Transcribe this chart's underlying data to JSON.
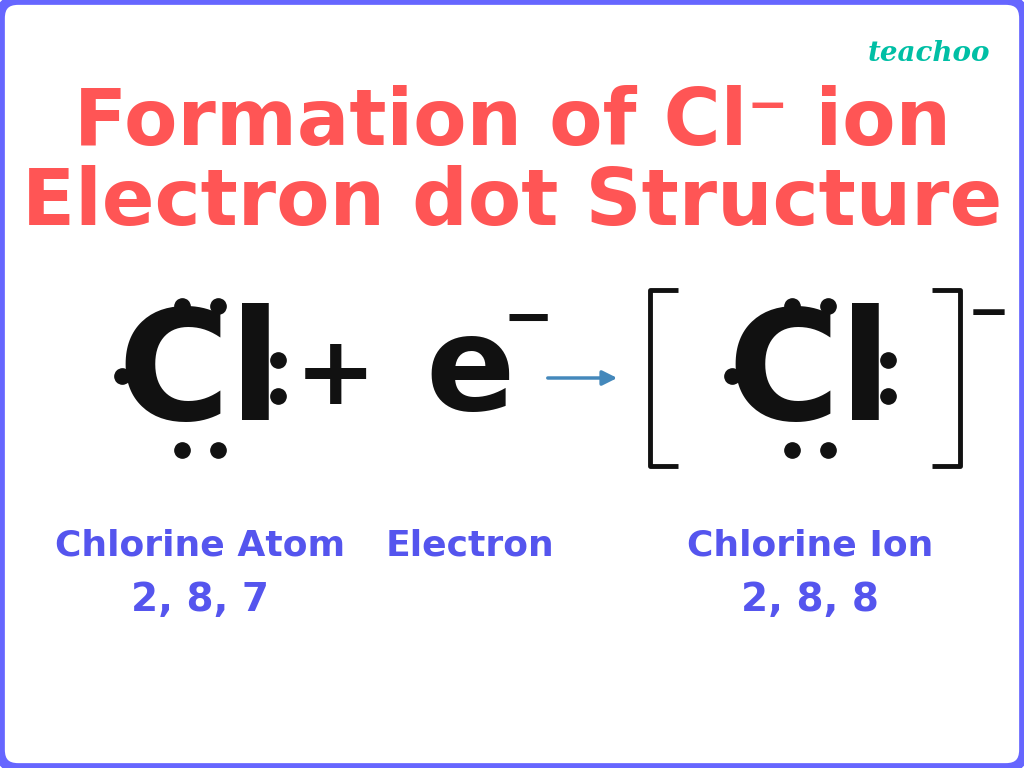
{
  "title_color": "#FF5555",
  "background_color": "#FFFFFF",
  "border_color": "#6666FF",
  "teachoo_color": "#00BFA5",
  "label_color": "#5555EE",
  "dot_color": "#111111",
  "arrow_color": "#4488BB",
  "bracket_color": "#111111",
  "cl_color": "#111111",
  "e_color": "#111111",
  "plus_color": "#111111",
  "label1": "Chlorine Atom",
  "label1b": "2, 8, 7",
  "label2": "Electron",
  "label3": "Chlorine Ion",
  "label3b": "2, 8, 8",
  "figw": 10.24,
  "figh": 7.68
}
